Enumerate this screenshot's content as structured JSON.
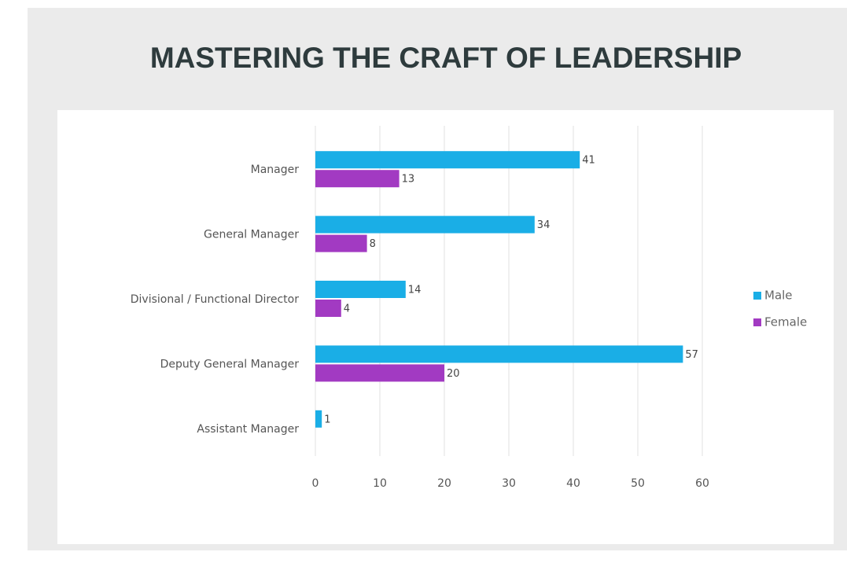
{
  "chart_data": {
    "type": "bar",
    "orientation": "horizontal",
    "title": "MASTERING THE CRAFT OF LEADERSHIP",
    "categories": [
      "Manager",
      "General Manager",
      "Divisional / Functional Director",
      "Deputy General Manager",
      "Assistant Manager"
    ],
    "series": [
      {
        "name": "Male",
        "color": "#1aaee6",
        "values": [
          41,
          34,
          14,
          57,
          1
        ]
      },
      {
        "name": "Female",
        "color": "#a23ac2",
        "values": [
          13,
          8,
          4,
          20,
          null
        ]
      }
    ],
    "xlim": [
      0,
      60
    ],
    "xticks": [
      0,
      10,
      20,
      30,
      40,
      50,
      60
    ],
    "grid": true,
    "legend": "right"
  }
}
